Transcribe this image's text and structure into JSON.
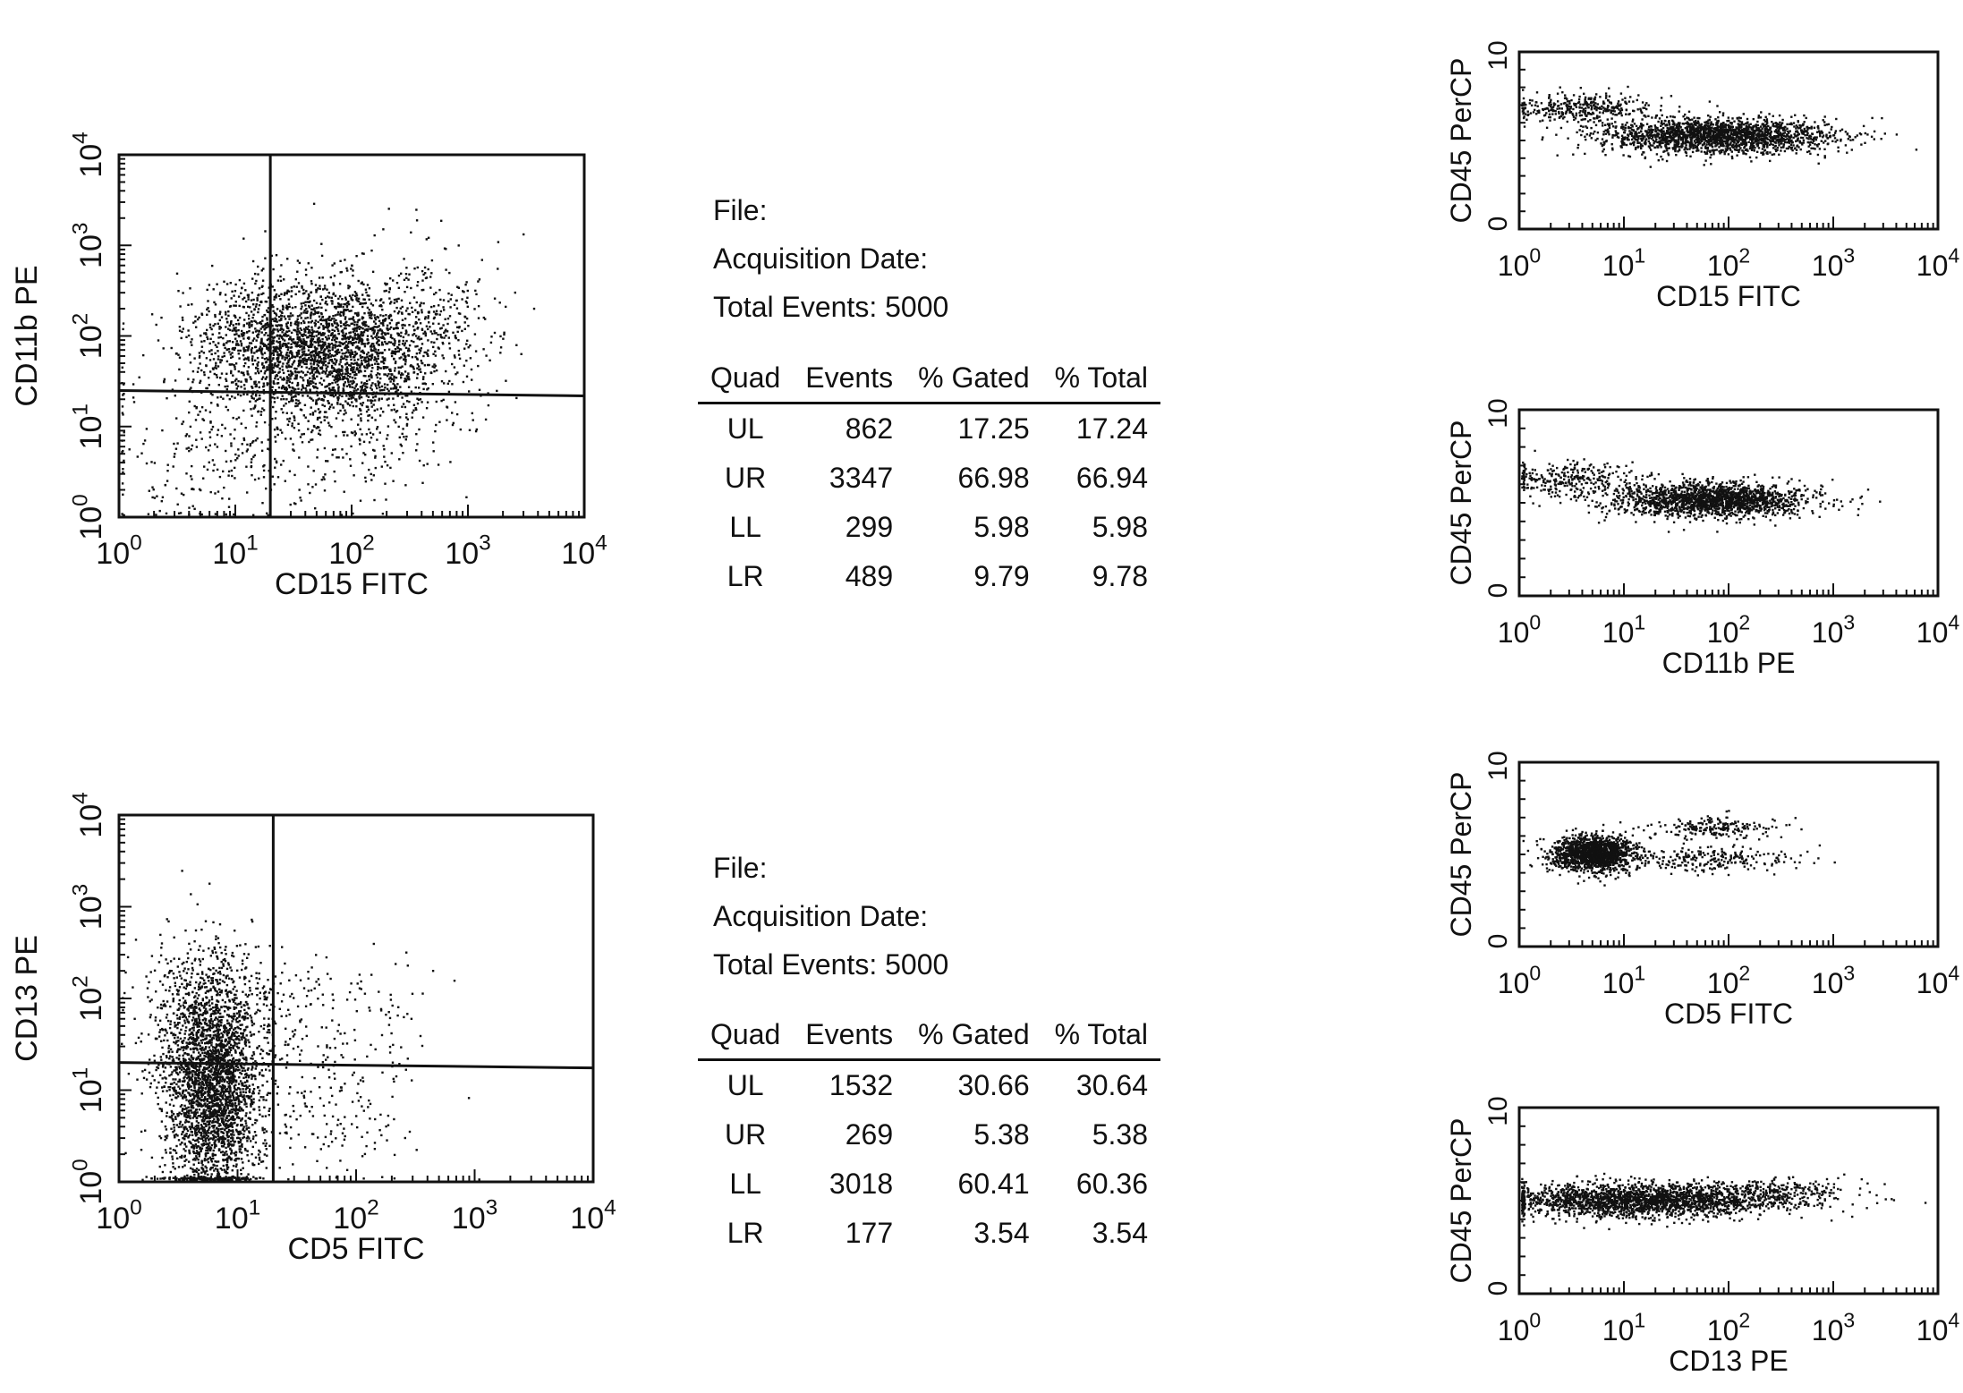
{
  "chart_data": [
    {
      "type": "scatter",
      "subtype": "quadrant-dot-plot",
      "xlabel": "CD15 FITC",
      "ylabel": "CD11b PE",
      "xscale": "log",
      "yscale": "log",
      "xlim": [
        1,
        10000
      ],
      "ylim": [
        1,
        10000
      ],
      "x_tick_labels": [
        "10^0",
        "10^1",
        "10^2",
        "10^3",
        "10^4"
      ],
      "y_tick_labels": [
        "10^0",
        "10^1",
        "10^2",
        "10^3",
        "10^4"
      ],
      "quadrant_gate": {
        "x": 20,
        "y": 25
      },
      "populations": [
        {
          "x_center": 70,
          "y_center": 70,
          "x_spread": 0.5,
          "y_spread": 0.38,
          "count": 2300
        },
        {
          "x_center": 15,
          "y_center": 80,
          "x_spread": 0.35,
          "y_spread": 0.35,
          "count": 500
        },
        {
          "x_center": 400,
          "y_center": 200,
          "x_spread": 0.35,
          "y_spread": 0.45,
          "count": 200
        },
        {
          "x_center": 6,
          "y_center": 5,
          "x_spread": 0.5,
          "y_spread": 0.45,
          "count": 220
        },
        {
          "x_center": 80,
          "y_center": 8,
          "x_spread": 0.5,
          "y_spread": 0.4,
          "count": 240
        }
      ]
    },
    {
      "type": "scatter",
      "subtype": "quadrant-dot-plot",
      "xlabel": "CD5 FITC",
      "ylabel": "CD13 PE",
      "xscale": "log",
      "yscale": "log",
      "xlim": [
        1,
        10000
      ],
      "ylim": [
        1,
        10000
      ],
      "x_tick_labels": [
        "10^0",
        "10^1",
        "10^2",
        "10^3",
        "10^4"
      ],
      "y_tick_labels": [
        "10^0",
        "10^1",
        "10^2",
        "10^3",
        "10^4"
      ],
      "quadrant_gate": {
        "x": 20,
        "y": 20
      },
      "populations": [
        {
          "x_center": 6,
          "y_center": 10,
          "x_spread": 0.2,
          "y_spread": 0.6,
          "count": 2600
        },
        {
          "x_center": 6,
          "y_center": 60,
          "x_spread": 0.3,
          "y_spread": 0.5,
          "count": 650
        },
        {
          "x_center": 70,
          "y_center": 60,
          "x_spread": 0.4,
          "y_spread": 0.4,
          "count": 150
        },
        {
          "x_center": 60,
          "y_center": 5,
          "x_spread": 0.35,
          "y_spread": 0.35,
          "count": 130
        }
      ]
    },
    {
      "type": "scatter",
      "subtype": "dot-plot",
      "xlabel": "CD15 FITC",
      "ylabel": "CD45 PerCP",
      "xscale": "log",
      "xlim": [
        1,
        10000
      ],
      "ylim": [
        0,
        10
      ],
      "x_tick_labels": [
        "10^0",
        "10^1",
        "10^2",
        "10^3",
        "10^4"
      ],
      "y_tick_labels": [
        "10",
        "0"
      ],
      "populations": [
        {
          "x_center": 80,
          "y_center": 5.3,
          "x_spread": 0.55,
          "y_spread": 0.5,
          "count": 2000
        },
        {
          "x_center": 4,
          "y_center": 6.9,
          "x_spread": 0.35,
          "y_spread": 0.4,
          "count": 350
        }
      ]
    },
    {
      "type": "scatter",
      "subtype": "dot-plot",
      "xlabel": "CD11b PE",
      "ylabel": "CD45 PerCP",
      "xscale": "log",
      "xlim": [
        1,
        10000
      ],
      "ylim": [
        0,
        10
      ],
      "x_tick_labels": [
        "10^0",
        "10^1",
        "10^2",
        "10^3",
        "10^4"
      ],
      "y_tick_labels": [
        "10",
        "0"
      ],
      "populations": [
        {
          "x_center": 70,
          "y_center": 5.2,
          "x_spread": 0.45,
          "y_spread": 0.45,
          "count": 1800
        },
        {
          "x_center": 3,
          "y_center": 6.3,
          "x_spread": 0.35,
          "y_spread": 0.45,
          "count": 300
        }
      ]
    },
    {
      "type": "scatter",
      "subtype": "dot-plot",
      "xlabel": "CD5 FITC",
      "ylabel": "CD45 PerCP",
      "xscale": "log",
      "xlim": [
        1,
        10000
      ],
      "ylim": [
        0,
        10
      ],
      "x_tick_labels": [
        "10^0",
        "10^1",
        "10^2",
        "10^3",
        "10^4"
      ],
      "y_tick_labels": [
        "10",
        "0"
      ],
      "populations": [
        {
          "x_center": 5,
          "y_center": 5.1,
          "x_spread": 0.2,
          "y_spread": 0.5,
          "count": 1500
        },
        {
          "x_center": 80,
          "y_center": 6.5,
          "x_spread": 0.3,
          "y_spread": 0.3,
          "count": 200
        },
        {
          "x_center": 60,
          "y_center": 4.8,
          "x_spread": 0.45,
          "y_spread": 0.35,
          "count": 250
        }
      ]
    },
    {
      "type": "scatter",
      "subtype": "dot-plot",
      "xlabel": "CD13 PE",
      "ylabel": "CD45 PerCP",
      "xscale": "log",
      "xlim": [
        1,
        10000
      ],
      "ylim": [
        0,
        10
      ],
      "x_tick_labels": [
        "10^0",
        "10^1",
        "10^2",
        "10^3",
        "10^4"
      ],
      "y_tick_labels": [
        "10",
        "0"
      ],
      "populations": [
        {
          "x_center": 15,
          "y_center": 5.1,
          "x_spread": 0.7,
          "y_spread": 0.45,
          "count": 2200
        },
        {
          "x_center": 300,
          "y_center": 5.6,
          "x_spread": 0.35,
          "y_spread": 0.35,
          "count": 200
        }
      ]
    }
  ],
  "stats": [
    {
      "file_label": "File:",
      "date_label": "Acquisition Date:",
      "total_label": "Total Events: 5000",
      "headers": [
        "Quad",
        "Events",
        "% Gated",
        "% Total"
      ],
      "rows": [
        [
          "UL",
          "862",
          "17.25",
          "17.24"
        ],
        [
          "UR",
          "3347",
          "66.98",
          "66.94"
        ],
        [
          "LL",
          "299",
          "5.98",
          "5.98"
        ],
        [
          "LR",
          "489",
          "9.79",
          "9.78"
        ]
      ]
    },
    {
      "file_label": "File:",
      "date_label": "Acquisition Date:",
      "total_label": "Total Events: 5000",
      "headers": [
        "Quad",
        "Events",
        "% Gated",
        "% Total"
      ],
      "rows": [
        [
          "UL",
          "1532",
          "30.66",
          "30.64"
        ],
        [
          "UR",
          "269",
          "5.38",
          "5.38"
        ],
        [
          "LL",
          "3018",
          "60.41",
          "60.36"
        ],
        [
          "LR",
          "177",
          "3.54",
          "3.54"
        ]
      ]
    }
  ]
}
